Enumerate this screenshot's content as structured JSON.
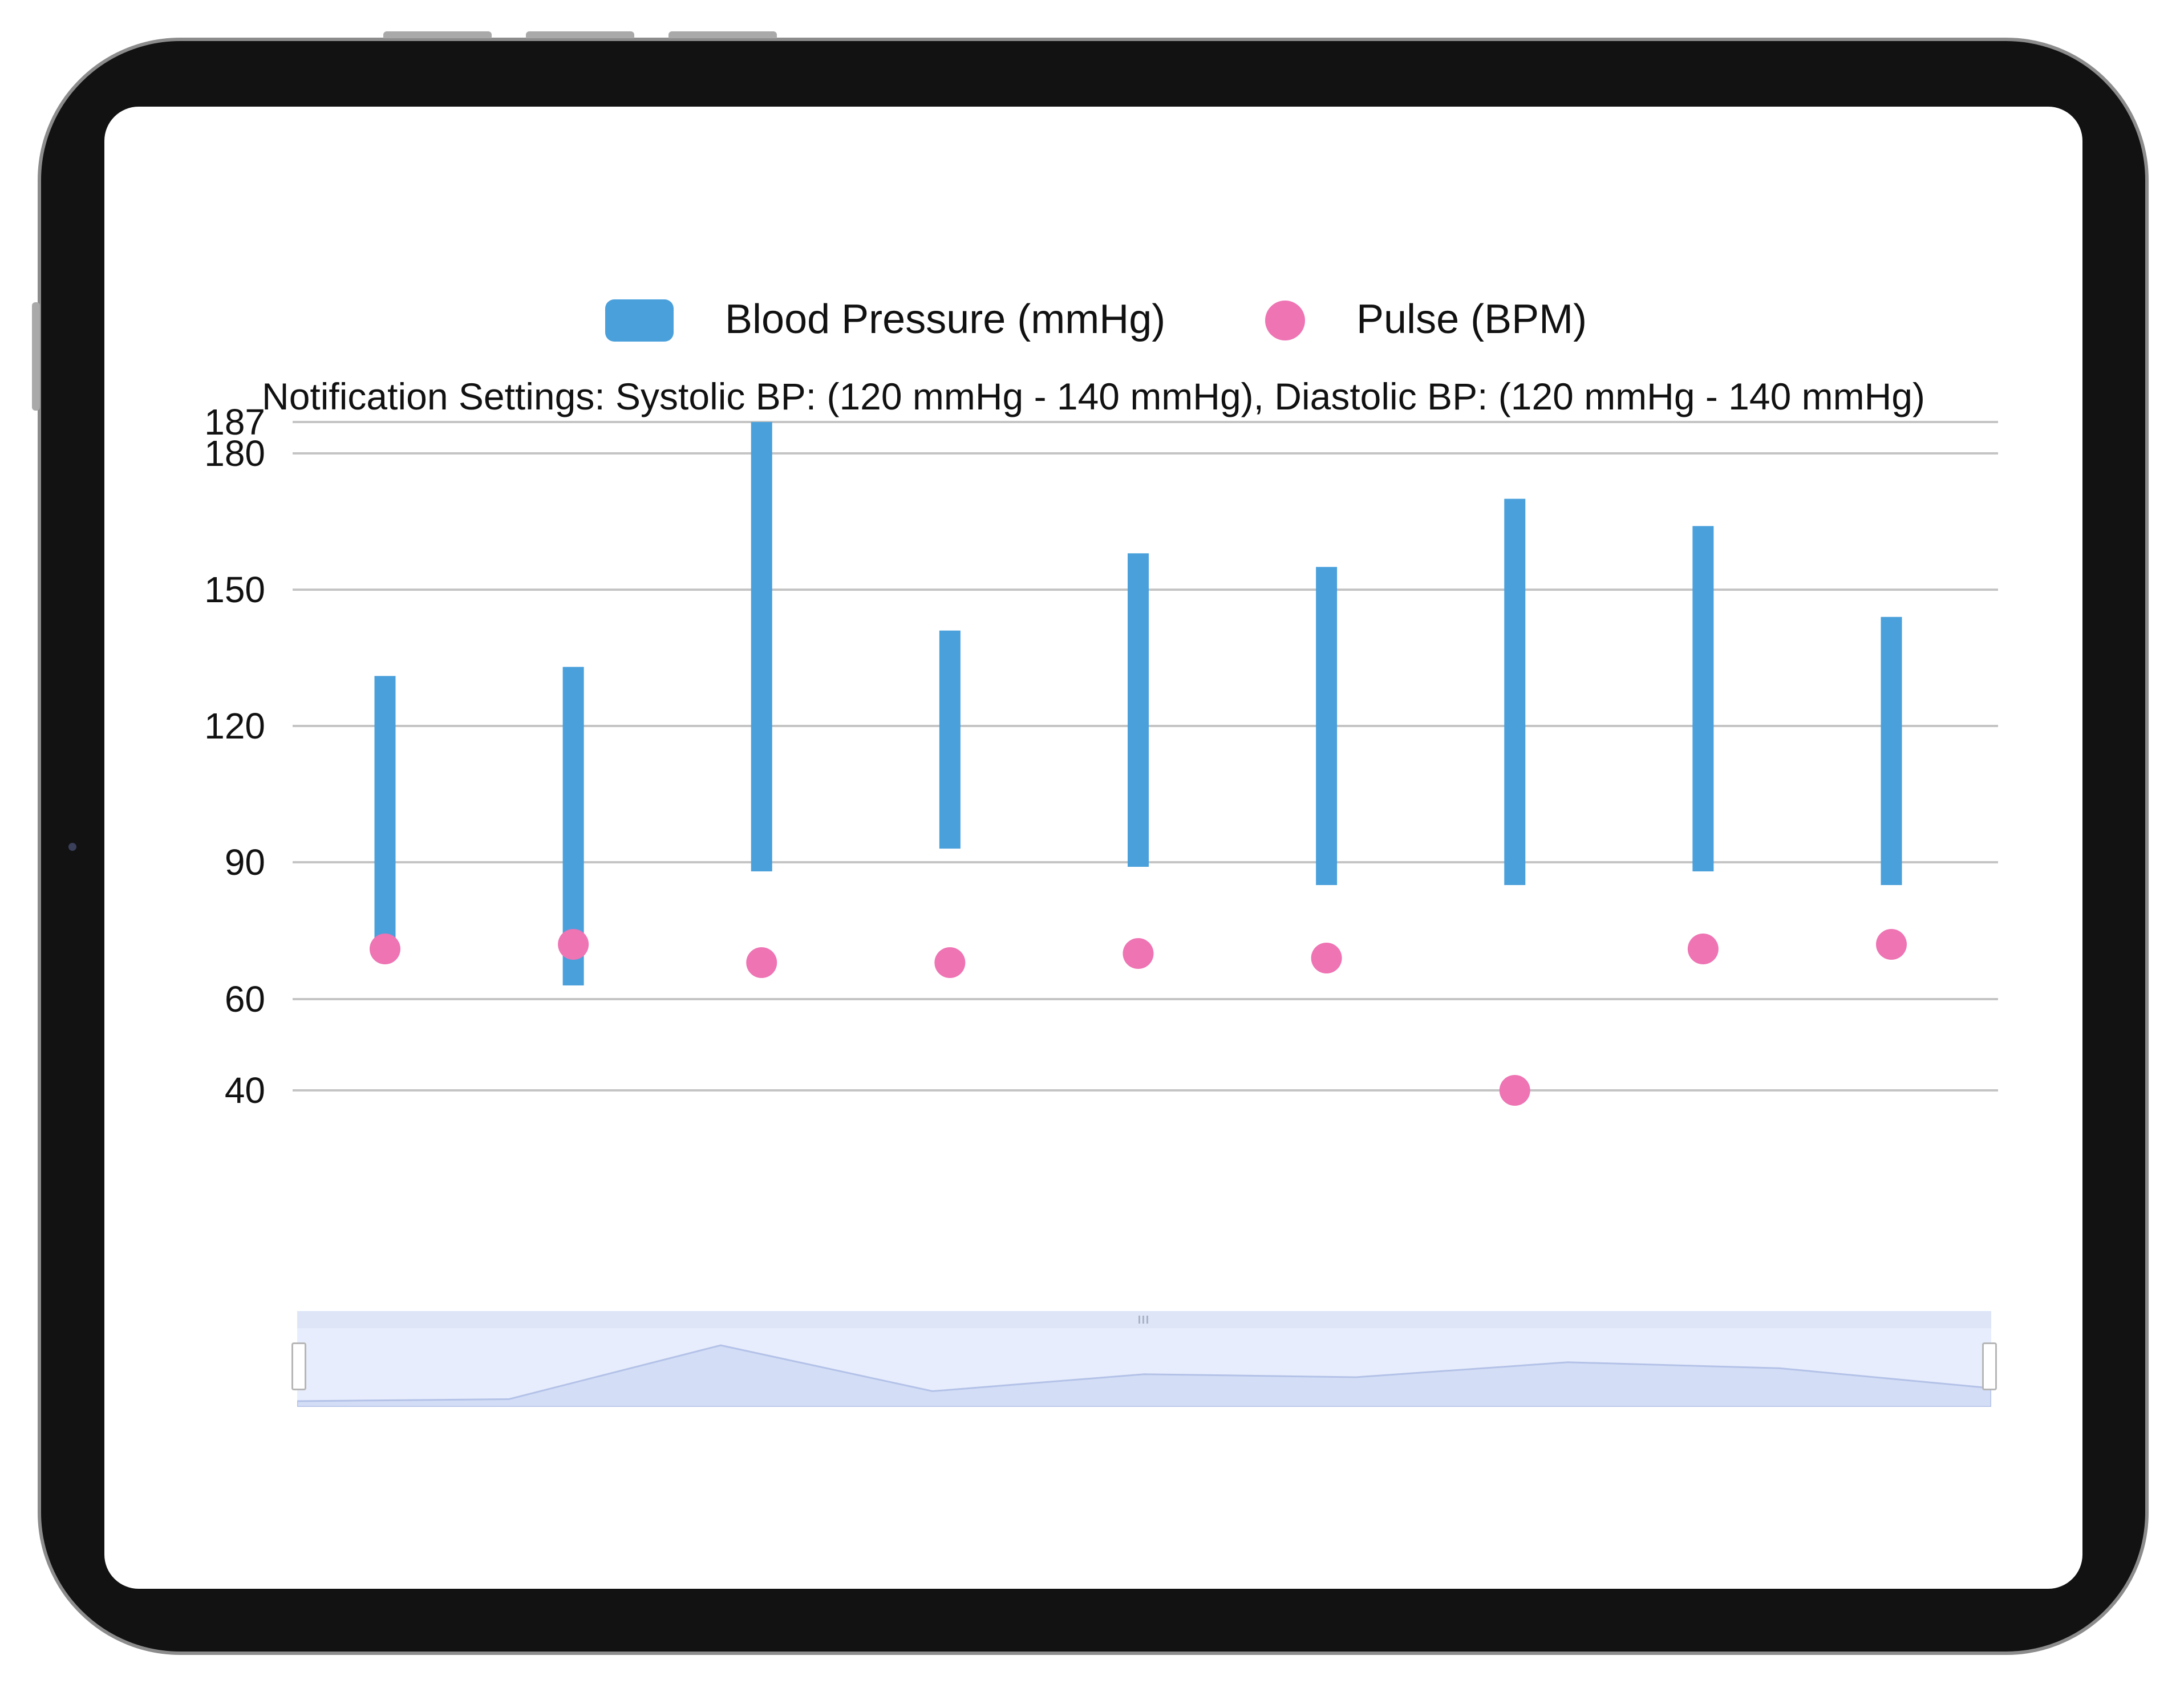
{
  "legend": {
    "bp_label": "Blood Pressure (mmHg)",
    "pulse_label": "Pulse (BPM)"
  },
  "notification": "Notification Settings: Systolic BP: (120 mmHg - 140 mmHg), Diastolic BP: (120 mmHg - 140 mmHg)",
  "colors": {
    "bp": "#4aa0db",
    "pulse": "#ee74b4",
    "grid": "#c4c4c4"
  },
  "chart_data": {
    "type": "range-bar-with-scatter",
    "title": "",
    "xlabel": "",
    "ylabel": "",
    "y_ticks": [
      40,
      60,
      90,
      120,
      150,
      180,
      187
    ],
    "ylim": [
      40,
      187
    ],
    "series": [
      {
        "name": "Blood Pressure (mmHg)",
        "type": "range-bar",
        "low": [
          72,
          63,
          88,
          93,
          89,
          85,
          85,
          88,
          85
        ],
        "high": [
          131,
          133,
          187,
          141,
          158,
          155,
          170,
          164,
          144
        ]
      },
      {
        "name": "Pulse (BPM)",
        "type": "scatter",
        "values": [
          71,
          72,
          68,
          68,
          70,
          69,
          40,
          71,
          72
        ]
      }
    ]
  }
}
